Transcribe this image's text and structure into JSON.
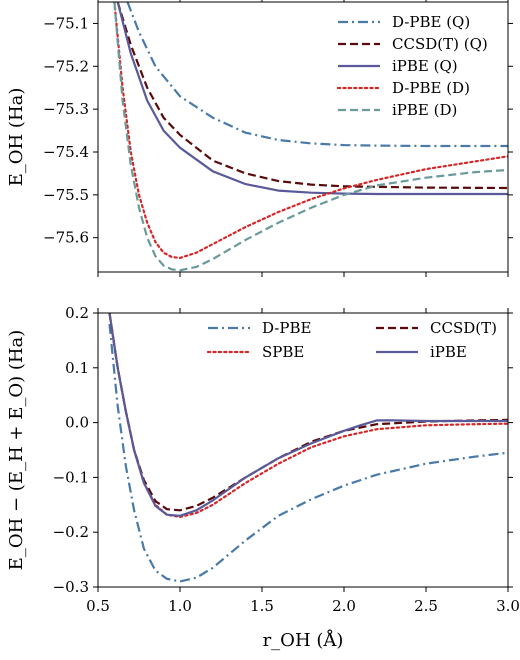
{
  "chart_data": [
    {
      "type": "line",
      "ylabel": "E_OH (Ha)",
      "xlim": [
        0.5,
        3.0
      ],
      "ylim": [
        -75.68,
        -75.05
      ],
      "yticks": [
        -75.1,
        -75.2,
        -75.3,
        -75.4,
        -75.5,
        -75.6
      ],
      "ytick_labels": [
        "−75.1",
        "−75.2",
        "−75.3",
        "−75.4",
        "−75.5",
        "−75.6"
      ],
      "grid": false,
      "legend_position": "top-right",
      "series": [
        {
          "name": "D-PBE (Q)",
          "color": "#4a7aa8",
          "dash": "dashdot",
          "x": [
            0.68,
            0.75,
            0.85,
            1.0,
            1.2,
            1.4,
            1.6,
            1.8,
            2.0,
            2.2,
            2.5,
            3.0
          ],
          "y": [
            -75.05,
            -75.12,
            -75.2,
            -75.27,
            -75.32,
            -75.355,
            -75.372,
            -75.38,
            -75.384,
            -75.385,
            -75.386,
            -75.386
          ]
        },
        {
          "name": "CCSD(T) (Q)",
          "color": "#5a0a0a",
          "dash": "dashed",
          "x": [
            0.62,
            0.7,
            0.8,
            0.9,
            1.0,
            1.2,
            1.4,
            1.6,
            1.8,
            2.0,
            2.5,
            3.0
          ],
          "y": [
            -75.05,
            -75.15,
            -75.25,
            -75.32,
            -75.36,
            -75.42,
            -75.45,
            -75.468,
            -75.476,
            -75.48,
            -75.483,
            -75.484
          ]
        },
        {
          "name": "iPBE (Q)",
          "color": "#5a5a9a",
          "dash": "solid",
          "x": [
            0.62,
            0.7,
            0.8,
            0.9,
            1.0,
            1.2,
            1.4,
            1.6,
            1.8,
            2.0,
            2.2,
            2.5,
            3.0
          ],
          "y": [
            -75.05,
            -75.17,
            -75.28,
            -75.35,
            -75.39,
            -75.445,
            -75.475,
            -75.49,
            -75.495,
            -75.497,
            -75.498,
            -75.498,
            -75.498
          ]
        },
        {
          "name": "D-PBE (D)",
          "color": "#d62728",
          "dash": "dotted",
          "x": [
            0.6,
            0.65,
            0.7,
            0.75,
            0.8,
            0.85,
            0.9,
            0.95,
            1.0,
            1.1,
            1.2,
            1.4,
            1.6,
            1.8,
            2.0,
            2.2,
            2.5,
            2.8,
            3.0
          ],
          "y": [
            -75.05,
            -75.25,
            -75.4,
            -75.5,
            -75.565,
            -75.61,
            -75.635,
            -75.645,
            -75.647,
            -75.635,
            -75.615,
            -75.575,
            -75.54,
            -75.51,
            -75.485,
            -75.465,
            -75.44,
            -75.422,
            -75.41
          ]
        },
        {
          "name": "iPBE (D)",
          "color": "#6a9a9a",
          "dash": "dashed",
          "x": [
            0.6,
            0.65,
            0.7,
            0.75,
            0.8,
            0.85,
            0.9,
            0.95,
            1.0,
            1.1,
            1.2,
            1.4,
            1.6,
            1.8,
            2.0,
            2.2,
            2.5,
            2.8,
            3.0
          ],
          "y": [
            -75.05,
            -75.28,
            -75.43,
            -75.53,
            -75.6,
            -75.643,
            -75.665,
            -75.674,
            -75.676,
            -75.668,
            -75.65,
            -75.605,
            -75.565,
            -75.53,
            -75.5,
            -75.478,
            -75.46,
            -75.447,
            -75.442
          ]
        }
      ]
    },
    {
      "type": "line",
      "xlabel": "r_OH (Å)",
      "ylabel": "E_OH − (E_H + E_O) (Ha)",
      "xlim": [
        0.5,
        3.0
      ],
      "ylim": [
        -0.3,
        0.2
      ],
      "xticks": [
        0.5,
        1.0,
        1.5,
        2.0,
        2.5,
        3.0
      ],
      "xtick_labels": [
        "0.5",
        "1.0",
        "1.5",
        "2.0",
        "2.5",
        "3.0"
      ],
      "yticks": [
        0.2,
        0.1,
        0.0,
        -0.1,
        -0.2,
        -0.3
      ],
      "ytick_labels": [
        "0.2",
        "0.1",
        "0.0",
        "−0.1",
        "−0.2",
        "−0.3"
      ],
      "grid": false,
      "legend_position": "top-right",
      "series": [
        {
          "name": "D-PBE",
          "color": "#4a7aa8",
          "dash": "dashdot",
          "x": [
            0.57,
            0.62,
            0.67,
            0.72,
            0.78,
            0.85,
            0.92,
            1.0,
            1.1,
            1.2,
            1.4,
            1.6,
            1.8,
            2.0,
            2.2,
            2.5,
            2.8,
            3.0
          ],
          "y": [
            0.18,
            0.03,
            -0.08,
            -0.16,
            -0.23,
            -0.27,
            -0.285,
            -0.29,
            -0.283,
            -0.265,
            -0.215,
            -0.17,
            -0.14,
            -0.115,
            -0.095,
            -0.075,
            -0.062,
            -0.055
          ]
        },
        {
          "name": "SPBE",
          "color": "#d62728",
          "dash": "dotted",
          "x": [
            0.57,
            0.62,
            0.67,
            0.72,
            0.78,
            0.85,
            0.92,
            1.0,
            1.1,
            1.2,
            1.4,
            1.6,
            1.8,
            2.0,
            2.2,
            2.5,
            2.8,
            3.0
          ],
          "y": [
            0.2,
            0.1,
            0.02,
            -0.05,
            -0.11,
            -0.15,
            -0.168,
            -0.172,
            -0.165,
            -0.15,
            -0.11,
            -0.075,
            -0.045,
            -0.025,
            -0.012,
            -0.005,
            -0.003,
            -0.002
          ]
        },
        {
          "name": "CCSD(T)",
          "color": "#5a0a0a",
          "dash": "dashed",
          "x": [
            0.57,
            0.62,
            0.67,
            0.72,
            0.78,
            0.85,
            0.92,
            1.0,
            1.1,
            1.2,
            1.4,
            1.6,
            1.8,
            2.0,
            2.2,
            2.5,
            2.8,
            3.0
          ],
          "y": [
            0.2,
            0.1,
            0.02,
            -0.05,
            -0.105,
            -0.143,
            -0.158,
            -0.16,
            -0.152,
            -0.137,
            -0.1,
            -0.065,
            -0.035,
            -0.015,
            -0.003,
            0.002,
            0.004,
            0.005
          ]
        },
        {
          "name": "iPBE",
          "color": "#5a5a9a",
          "dash": "solid",
          "x": [
            0.57,
            0.62,
            0.67,
            0.72,
            0.78,
            0.85,
            0.92,
            1.0,
            1.1,
            1.2,
            1.4,
            1.6,
            1.8,
            2.0,
            2.1,
            2.2,
            2.3,
            2.5,
            3.0
          ],
          "y": [
            0.2,
            0.1,
            0.02,
            -0.05,
            -0.11,
            -0.152,
            -0.168,
            -0.17,
            -0.16,
            -0.142,
            -0.1,
            -0.065,
            -0.038,
            -0.015,
            -0.005,
            0.004,
            0.004,
            0.003,
            0.003
          ]
        }
      ]
    }
  ]
}
